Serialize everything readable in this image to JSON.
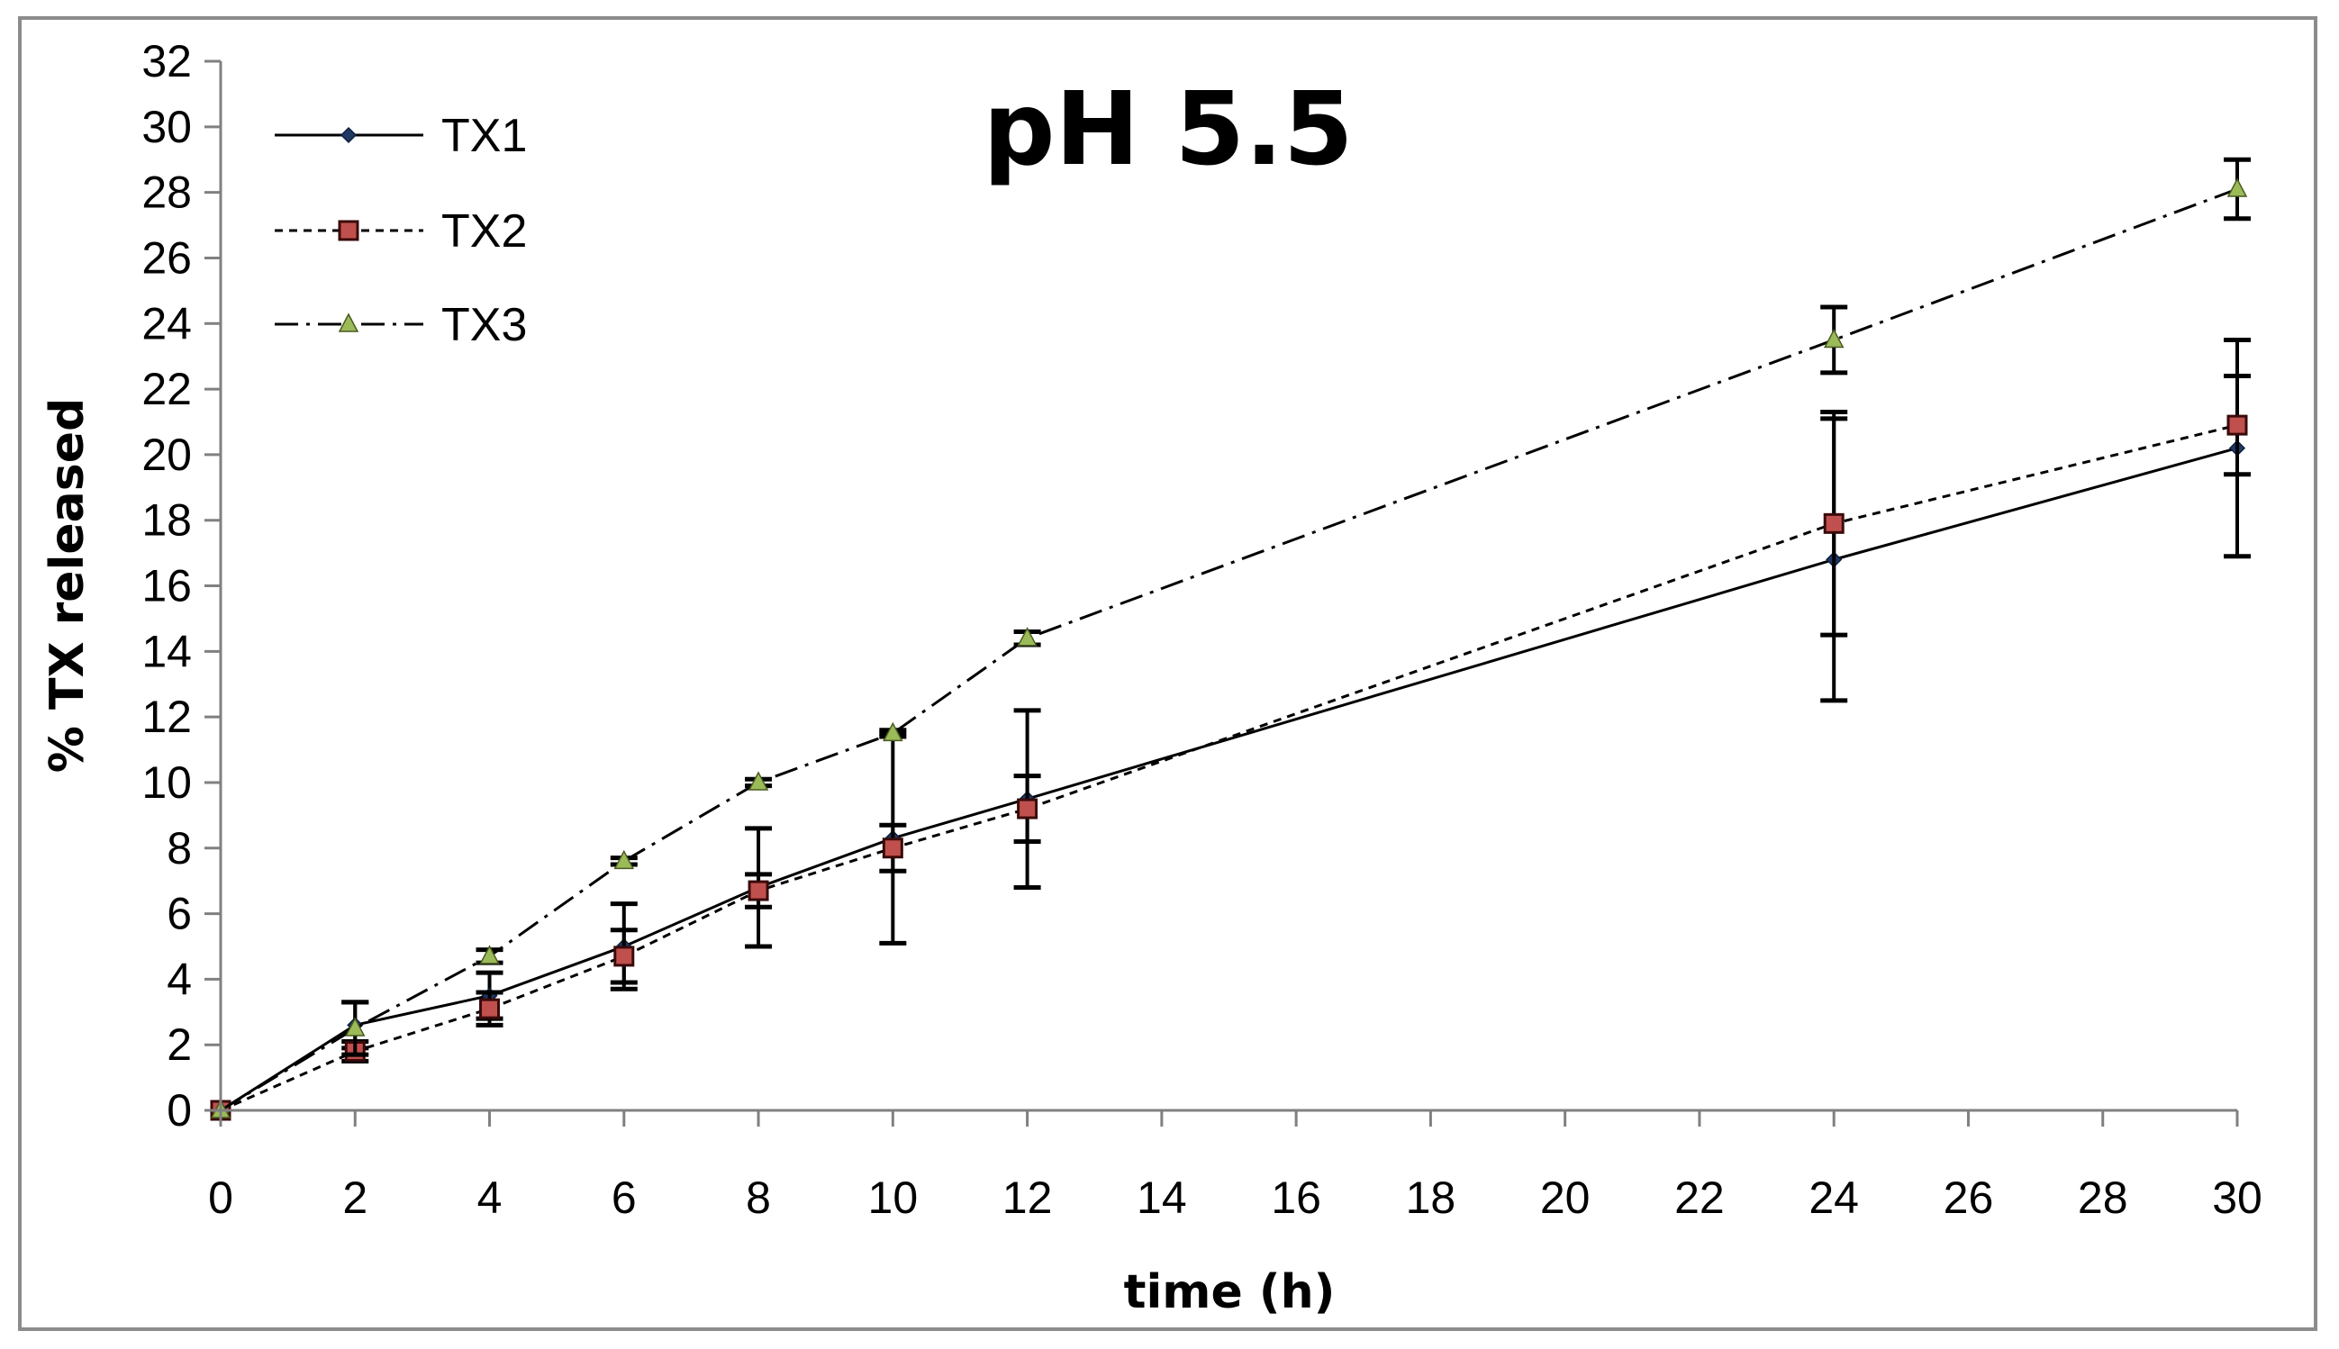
{
  "chart_data": {
    "type": "line",
    "title": "pH 5.5",
    "xlabel": "time (h)",
    "ylabel": "% TX released",
    "xlim": [
      0,
      30
    ],
    "ylim": [
      0,
      32
    ],
    "x_ticks": [
      0,
      2,
      4,
      6,
      8,
      10,
      12,
      14,
      16,
      18,
      20,
      22,
      24,
      26,
      28,
      30
    ],
    "y_ticks": [
      0,
      2,
      4,
      6,
      8,
      10,
      12,
      14,
      16,
      18,
      20,
      22,
      24,
      26,
      28,
      30,
      32
    ],
    "grid": false,
    "legend_position": "top-left",
    "series": [
      {
        "name": "TX1",
        "color": "#1f3864",
        "marker": "diamond",
        "line_style": "solid",
        "x": [
          0,
          2,
          4,
          6,
          8,
          10,
          12,
          24,
          30
        ],
        "values": [
          0,
          2.6,
          3.5,
          5.0,
          6.8,
          8.3,
          9.5,
          16.8,
          20.2
        ],
        "errors": [
          0,
          0.7,
          0.7,
          1.3,
          1.8,
          3.2,
          2.7,
          4.3,
          3.3
        ]
      },
      {
        "name": "TX2",
        "color": "#c0504d",
        "marker": "square",
        "line_style": "dashed",
        "x": [
          0,
          2,
          4,
          6,
          8,
          10,
          12,
          24,
          30
        ],
        "values": [
          0,
          1.8,
          3.1,
          4.7,
          6.7,
          8.0,
          9.2,
          17.9,
          20.9
        ],
        "errors": [
          0,
          0.3,
          0.5,
          0.8,
          0.5,
          0.7,
          1.0,
          3.4,
          1.5
        ]
      },
      {
        "name": "TX3",
        "color": "#9bbb59",
        "marker": "triangle",
        "line_style": "dash-dot",
        "x": [
          0,
          2,
          4,
          6,
          8,
          10,
          12,
          24,
          30
        ],
        "values": [
          0,
          2.5,
          4.7,
          7.6,
          10.0,
          11.5,
          14.4,
          23.5,
          28.1
        ],
        "errors": [
          0,
          0.8,
          0.2,
          0.1,
          0.1,
          0.1,
          0.2,
          1.0,
          0.9
        ]
      }
    ]
  }
}
